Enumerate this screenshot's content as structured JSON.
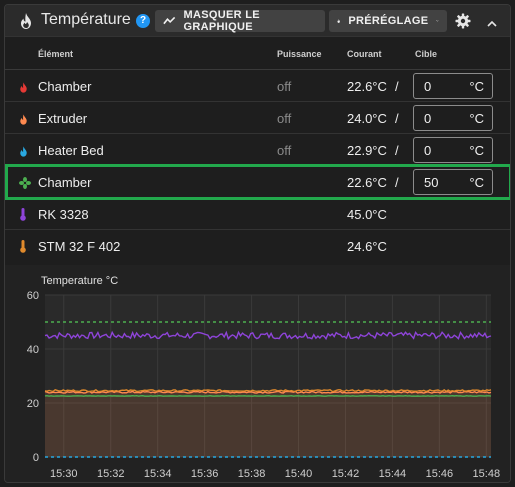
{
  "header": {
    "title": "Température",
    "help": "?",
    "graph_button": "MASQUER LE GRAPHIQUE",
    "preset_button": "PRÉRÉGLAGE"
  },
  "columns": {
    "element": "Élément",
    "power": "Puissance",
    "current": "Courant",
    "target": "Cible"
  },
  "rows": [
    {
      "name": "Chamber",
      "icon": "flame-icon",
      "color": "#e53935",
      "power": "off",
      "current": "22.6°C",
      "slash": "/",
      "target": "0",
      "unit": "°C"
    },
    {
      "name": "Extruder",
      "icon": "flame-icon",
      "color": "#ff8a50",
      "power": "off",
      "current": "24.0°C",
      "slash": "/",
      "target": "0",
      "unit": "°C"
    },
    {
      "name": "Heater Bed",
      "icon": "flame-icon",
      "color": "#29a8e0",
      "power": "off",
      "current": "22.9°C",
      "slash": "/",
      "target": "0",
      "unit": "°C"
    },
    {
      "name": "Chamber",
      "icon": "fan-icon",
      "color": "#4caf50",
      "power": "",
      "current": "22.6°C",
      "slash": "/",
      "target": "50",
      "unit": "°C"
    },
    {
      "name": "RK 3328",
      "icon": "thermometer-icon",
      "color": "#8e44d9",
      "power": "",
      "current": "45.0°C",
      "slash": "",
      "target": "",
      "unit": ""
    },
    {
      "name": "STM 32 F 402",
      "icon": "thermometer-icon",
      "color": "#e08a2c",
      "power": "",
      "current": "24.6°C",
      "slash": "",
      "target": "",
      "unit": ""
    }
  ],
  "chart_data": {
    "type": "line",
    "title": "Temperature °C",
    "ylim": [
      0,
      60
    ],
    "yticks": [
      "0",
      "20",
      "40",
      "60"
    ],
    "xticks": [
      "15:30",
      "15:32",
      "15:34",
      "15:36",
      "15:38",
      "15:40",
      "15:42",
      "15:44",
      "15:46",
      "15:48"
    ],
    "xrange": [
      29.2,
      48.2
    ],
    "series": [
      {
        "color": "#8e44d9",
        "style": "solid",
        "values": [
          45.0
        ],
        "noise": 1.2
      },
      {
        "color": "#4caf50",
        "style": "dashed",
        "values": [
          50.0
        ],
        "noise": 0
      },
      {
        "color": "#ff8a50",
        "style": "solid",
        "values": [
          24.0
        ],
        "noise": 0.3,
        "fill": true
      },
      {
        "color": "#e08a2c",
        "style": "solid",
        "values": [
          24.6
        ],
        "noise": 0.3
      },
      {
        "color": "#4caf50",
        "style": "solid",
        "values": [
          22.6
        ],
        "noise": 0.1
      },
      {
        "color": "#29a8e0",
        "style": "dashed",
        "values": [
          0
        ],
        "noise": 0
      }
    ]
  }
}
